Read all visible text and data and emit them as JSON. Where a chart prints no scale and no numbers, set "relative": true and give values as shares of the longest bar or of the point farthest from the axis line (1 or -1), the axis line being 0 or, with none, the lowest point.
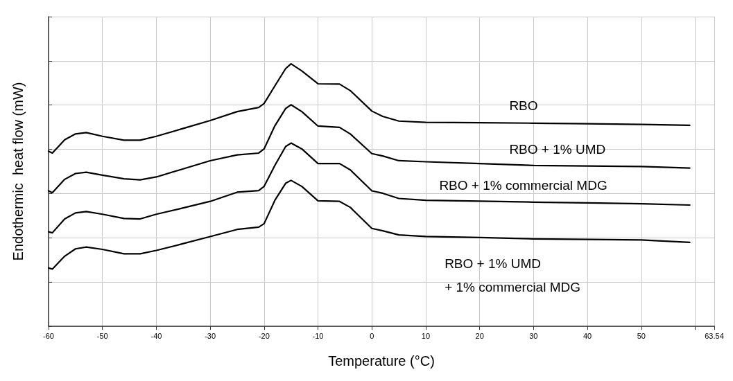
{
  "chart_data": {
    "type": "line",
    "xlabel": "Temperature (°C)",
    "ylabel": "Endothermic  heat flow (mW)",
    "relative": true,
    "xlim": [
      -60,
      63.54
    ],
    "xticks": [
      -60,
      -50,
      -40,
      -30,
      -20,
      -10,
      0,
      10,
      20,
      30,
      40,
      50,
      {
        "value": 60,
        "label": null
      },
      63.54
    ],
    "x": [
      -60,
      -59.3,
      -57,
      -55,
      -53,
      -50,
      -46,
      -43,
      -40,
      -35,
      -30,
      -25,
      -21,
      -20,
      -18,
      -16,
      -15,
      -13,
      -10,
      -6,
      -4,
      0,
      2,
      5,
      10,
      20,
      30,
      40,
      50,
      59
    ],
    "series": [
      {
        "name": "RBO",
        "color": "#000000",
        "values": [
          0.667,
          0.66,
          0.711,
          0.733,
          0.738,
          0.724,
          0.709,
          0.709,
          0.724,
          0.754,
          0.784,
          0.818,
          0.834,
          0.849,
          0.916,
          0.982,
          1.0,
          0.973,
          0.924,
          0.923,
          0.898,
          0.82,
          0.8,
          0.782,
          0.777,
          0.776,
          0.774,
          0.772,
          0.769,
          0.766
        ]
      },
      {
        "name": "RBO + 1% UMD",
        "color": "#000000",
        "values": [
          0.516,
          0.509,
          0.56,
          0.582,
          0.587,
          0.576,
          0.562,
          0.558,
          0.569,
          0.6,
          0.631,
          0.653,
          0.66,
          0.676,
          0.764,
          0.83,
          0.844,
          0.818,
          0.763,
          0.758,
          0.733,
          0.658,
          0.649,
          0.631,
          0.627,
          0.62,
          0.613,
          0.611,
          0.609,
          0.603
        ]
      },
      {
        "name": "RBO + 1% commercial MDG",
        "color": "#000000",
        "values": [
          0.36,
          0.356,
          0.409,
          0.432,
          0.437,
          0.427,
          0.411,
          0.409,
          0.427,
          0.451,
          0.476,
          0.511,
          0.517,
          0.533,
          0.613,
          0.685,
          0.698,
          0.676,
          0.62,
          0.62,
          0.596,
          0.516,
          0.507,
          0.487,
          0.48,
          0.477,
          0.473,
          0.47,
          0.467,
          0.462
        ]
      },
      {
        "name": "RBO + 1% UMD\n+ 1% commercial MDG",
        "color": "#000000",
        "values": [
          0.222,
          0.218,
          0.267,
          0.295,
          0.302,
          0.293,
          0.276,
          0.276,
          0.289,
          0.315,
          0.342,
          0.369,
          0.378,
          0.391,
          0.48,
          0.545,
          0.556,
          0.533,
          0.478,
          0.476,
          0.453,
          0.373,
          0.364,
          0.348,
          0.342,
          0.338,
          0.333,
          0.331,
          0.329,
          0.32
        ]
      }
    ],
    "grid": true,
    "legend": false,
    "marker": "none",
    "line_style": "solid"
  }
}
